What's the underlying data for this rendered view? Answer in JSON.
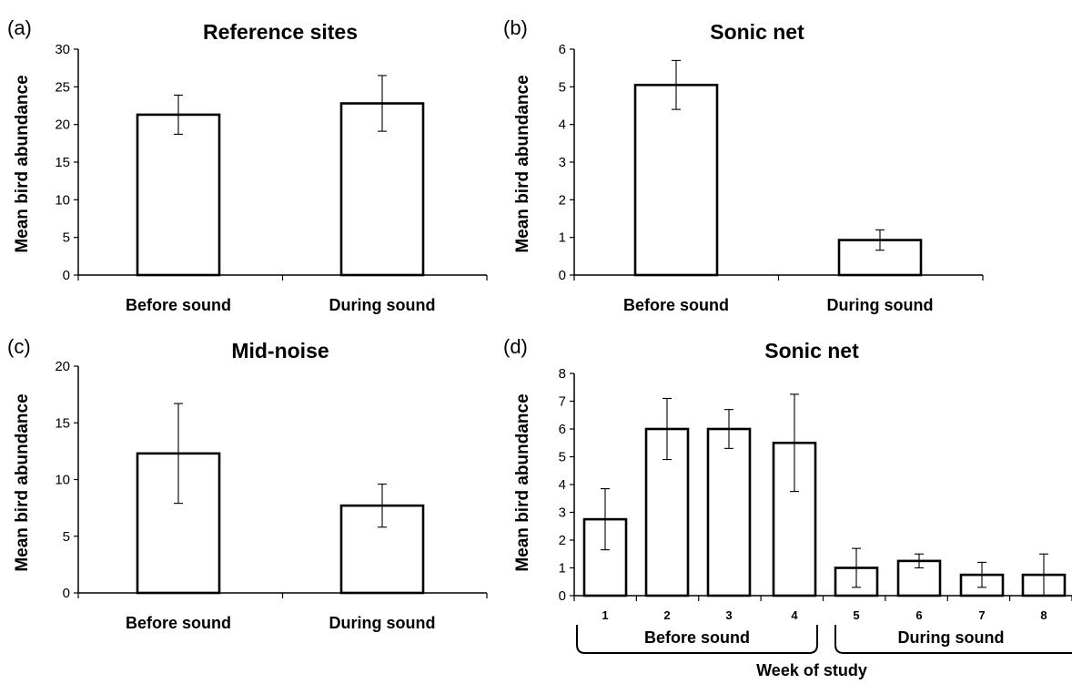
{
  "chart_data": [
    {
      "panel": "(a)",
      "type": "bar",
      "title": "Reference sites",
      "ylabel": "Mean bird abundance",
      "xlabel": "",
      "ylim": [
        0,
        30
      ],
      "yticks": [
        0,
        5,
        10,
        15,
        20,
        25,
        30
      ],
      "categories": [
        "Before sound",
        "During sound"
      ],
      "values": [
        21.3,
        22.8
      ],
      "errors": [
        2.6,
        3.7
      ]
    },
    {
      "panel": "(b)",
      "type": "bar",
      "title": "Sonic net",
      "ylabel": "Mean bird abundance",
      "xlabel": "",
      "ylim": [
        0,
        6
      ],
      "yticks": [
        0,
        1,
        2,
        3,
        4,
        5,
        6
      ],
      "categories": [
        "Before sound",
        "During sound"
      ],
      "values": [
        5.05,
        0.93
      ],
      "errors": [
        0.65,
        0.27
      ]
    },
    {
      "panel": "(c)",
      "type": "bar",
      "title": "Mid-noise",
      "ylabel": "Mean bird abundance",
      "xlabel": "",
      "ylim": [
        0,
        20
      ],
      "yticks": [
        0,
        5,
        10,
        15,
        20
      ],
      "categories": [
        "Before sound",
        "During sound"
      ],
      "values": [
        12.3,
        7.7
      ],
      "errors": [
        4.4,
        1.9
      ]
    },
    {
      "panel": "(d)",
      "type": "bar",
      "title": "Sonic net",
      "ylabel": "Mean bird abundance",
      "xlabel": "Week of study",
      "ylim": [
        0,
        8
      ],
      "yticks": [
        0,
        1,
        2,
        3,
        4,
        5,
        6,
        7,
        8
      ],
      "categories": [
        "1",
        "2",
        "3",
        "4",
        "5",
        "6",
        "7",
        "8"
      ],
      "values": [
        2.75,
        6.0,
        6.0,
        5.5,
        1.0,
        1.25,
        0.75,
        0.75
      ],
      "errors": [
        1.1,
        1.1,
        0.7,
        1.75,
        0.7,
        0.25,
        0.45,
        0.75
      ],
      "groups": [
        {
          "label": "Before sound",
          "members": [
            "1",
            "2",
            "3",
            "4"
          ]
        },
        {
          "label": "During sound",
          "members": [
            "5",
            "6",
            "7",
            "8"
          ]
        }
      ]
    }
  ]
}
